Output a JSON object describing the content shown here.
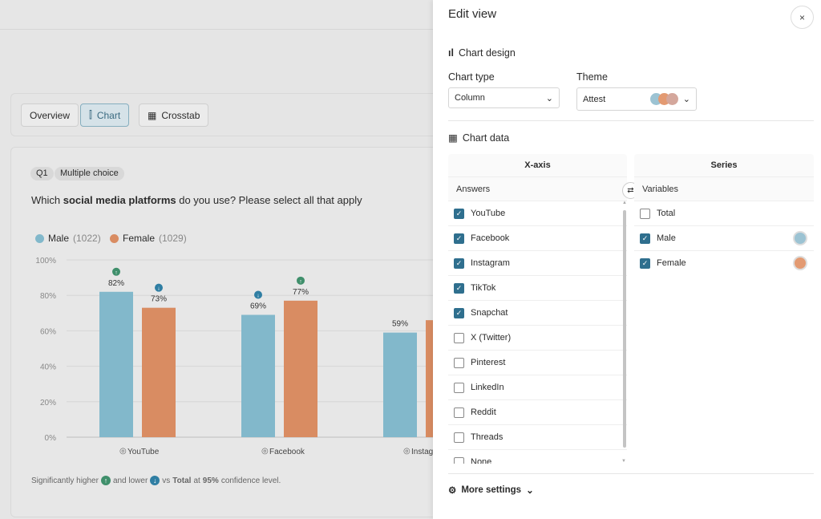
{
  "tabs": [
    {
      "label": "Overview"
    },
    {
      "label": "Chart"
    },
    {
      "label": "Crosstab"
    }
  ],
  "question": {
    "code": "Q1",
    "type": "Multiple choice",
    "text_pre": "Which ",
    "text_bold": "social media platforms",
    "text_post": " do you use? Please select all that apply"
  },
  "legend": [
    {
      "name": "Male",
      "count": "(1022)",
      "color": "#82b8cb"
    },
    {
      "name": "Female",
      "count": "(1029)",
      "color": "#d98c62"
    }
  ],
  "chart_data": {
    "type": "bar",
    "ylim": [
      0,
      100
    ],
    "yticks": [
      "0%",
      "20%",
      "40%",
      "60%",
      "80%",
      "100%"
    ],
    "categories": [
      "YouTube",
      "Facebook",
      "Instagram"
    ],
    "series": [
      {
        "name": "Male",
        "color": "#82b8cb",
        "values": [
          82,
          69,
          59
        ],
        "labels": [
          "82%",
          "69%",
          "59%"
        ],
        "sig": [
          "up",
          "down",
          ""
        ]
      },
      {
        "name": "Female",
        "color": "#d98c62",
        "values": [
          73,
          77,
          66
        ],
        "labels": [
          "73%",
          "77%",
          ""
        ],
        "sig": [
          "down",
          "up",
          ""
        ]
      }
    ]
  },
  "note": {
    "pre": "Significantly higher",
    "mid": "and lower",
    "vs": "vs",
    "total": "Total",
    "at": "at",
    "pct": "95%",
    "post": "confidence level."
  },
  "panel": {
    "title": "Edit view",
    "close": "×",
    "design_title": "Chart design",
    "chart_type_label": "Chart type",
    "chart_type": "Column",
    "theme_label": "Theme",
    "theme": "Attest",
    "theme_colors": [
      "#9cc3d3",
      "#e39a72",
      "#d4a79c"
    ],
    "data_title": "Chart data",
    "xaxis": "X-axis",
    "answers": "Answers",
    "series": "Series",
    "variables": "Variables",
    "answers_list": [
      {
        "label": "YouTube",
        "checked": true
      },
      {
        "label": "Facebook",
        "checked": true
      },
      {
        "label": "Instagram",
        "checked": true
      },
      {
        "label": "TikTok",
        "checked": true
      },
      {
        "label": "Snapchat",
        "checked": true
      },
      {
        "label": "X (Twitter)",
        "checked": false
      },
      {
        "label": "Pinterest",
        "checked": false
      },
      {
        "label": "LinkedIn",
        "checked": false
      },
      {
        "label": "Reddit",
        "checked": false
      },
      {
        "label": "Threads",
        "checked": false
      },
      {
        "label": "None",
        "checked": false
      }
    ],
    "variables_list": [
      {
        "label": "Total",
        "checked": false
      },
      {
        "label": "Male",
        "checked": true,
        "color": "#9cc3d3"
      },
      {
        "label": "Female",
        "checked": true,
        "color": "#e39a72"
      }
    ],
    "more_settings": "More settings"
  }
}
